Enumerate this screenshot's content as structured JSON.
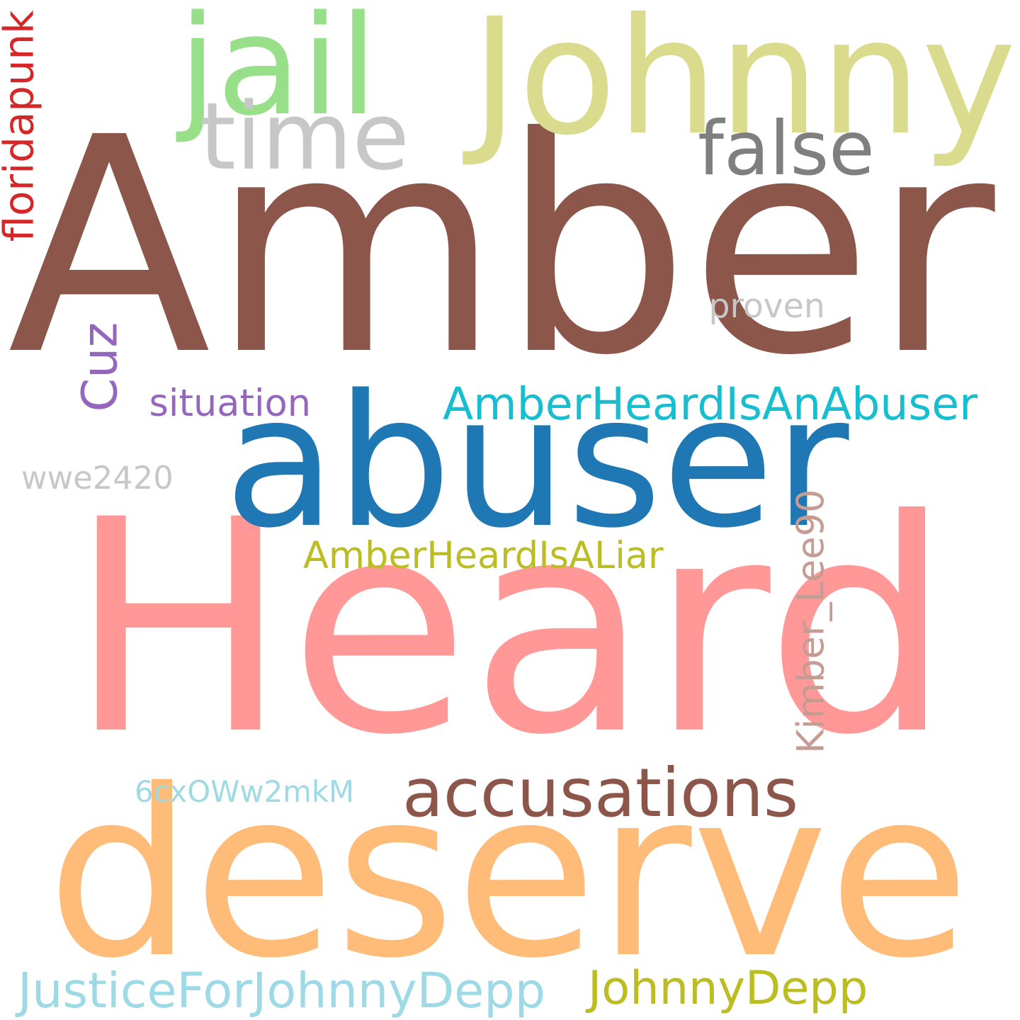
{
  "words": {
    "amber": {
      "text": "Amber",
      "color": "#8c564b"
    },
    "heard": {
      "text": "Heard",
      "color": "#ff9896"
    },
    "abuser": {
      "text": "abuser",
      "color": "#1f77b4"
    },
    "deserve": {
      "text": "deserve",
      "color": "#ffbb78"
    },
    "johnny": {
      "text": "Johnny",
      "color": "#dbdb8d"
    },
    "jail": {
      "text": "jail",
      "color": "#98df8a"
    },
    "time": {
      "text": "time",
      "color": "#c7c7c7"
    },
    "false": {
      "text": "false",
      "color": "#7f7f7f"
    },
    "accusations": {
      "text": "accusations",
      "color": "#8c564b"
    },
    "hashtag_abuser": {
      "text": "AmberHeardIsAnAbuser",
      "color": "#17becf"
    },
    "hashtag_liar": {
      "text": "AmberHeardIsALiar",
      "color": "#bcbd22"
    },
    "justice": {
      "text": "JusticeForJohnnyDepp",
      "color": "#9edae5"
    },
    "johnnydepp": {
      "text": "JohnnyDepp",
      "color": "#bcbd22"
    },
    "situation": {
      "text": "situation",
      "color": "#9467bd"
    },
    "cuz": {
      "text": "Cuz",
      "color": "#9467bd"
    },
    "wwe2420": {
      "text": "wwe2420",
      "color": "#c7c7c7"
    },
    "proven": {
      "text": "proven",
      "color": "#c7c7c7"
    },
    "floridapunk": {
      "text": "floridapunk",
      "color": "#d62728"
    },
    "kimber": {
      "text": "Kimber_Lee90",
      "color": "#c49c94"
    },
    "code": {
      "text": "6cxOWw2mkM",
      "color": "#9edae5"
    }
  }
}
